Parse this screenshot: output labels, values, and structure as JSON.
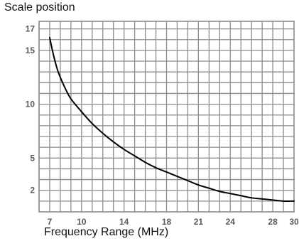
{
  "chart_data": {
    "type": "line",
    "title": "Scale position",
    "xlabel": "Frequency Range (MHz)",
    "ylabel": "",
    "xlim": [
      6,
      30
    ],
    "ylim": [
      0,
      17.7
    ],
    "x_ticks": [
      7,
      10,
      14,
      18,
      21,
      24,
      28,
      30
    ],
    "y_ticks": [
      2,
      5,
      10,
      15,
      17
    ],
    "grid": true,
    "legend": "none",
    "series": [
      {
        "color": "#000000",
        "x": [
          7,
          7.3,
          7.7,
          8,
          8.5,
          9,
          10,
          11,
          12,
          13,
          14,
          15,
          16,
          17,
          18,
          19,
          20,
          21,
          22,
          23,
          24,
          25,
          26,
          27,
          28,
          29,
          30
        ],
        "y": [
          16.2,
          14.8,
          13.3,
          12.5,
          11.4,
          10.5,
          9.3,
          8.2,
          7.3,
          6.5,
          5.8,
          5.2,
          4.6,
          4.1,
          3.7,
          3.3,
          2.9,
          2.5,
          2.2,
          1.9,
          1.7,
          1.5,
          1.3,
          1.2,
          1.1,
          1.0,
          1.0
        ]
      }
    ]
  }
}
